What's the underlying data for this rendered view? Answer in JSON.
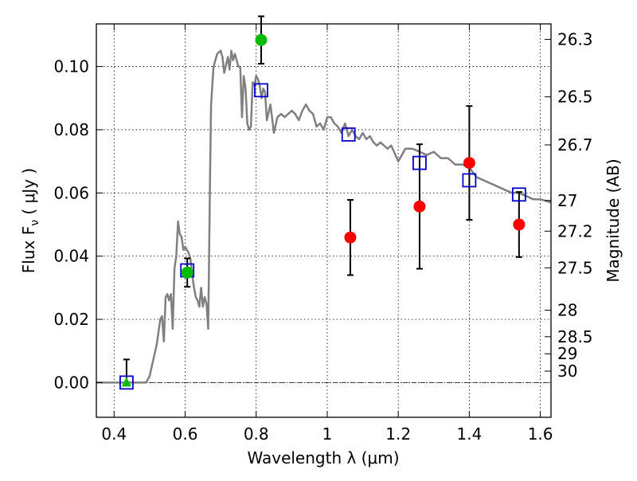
{
  "chart_data": {
    "type": "scatter",
    "xlabel": "Wavelength  λ (μm)",
    "ylabel": "Flux  F",
    "ylabel_sub": "ν",
    "ylabel_unit": "  ( μJy )",
    "y2label": "Magnitude (AB)",
    "xlim": [
      0.35,
      1.63
    ],
    "ylim": [
      -0.011,
      0.1135
    ],
    "grid": true,
    "x_ticks": [
      0.4,
      0.6,
      0.8,
      1.0,
      1.2,
      1.4,
      1.6
    ],
    "x_tick_labels": [
      "0.4",
      "0.6",
      "0.8",
      "1",
      "1.2",
      "1.4",
      "1.6"
    ],
    "y_ticks": [
      0.0,
      0.02,
      0.04,
      0.06,
      0.08,
      0.1
    ],
    "y_tick_labels": [
      "0.00",
      "0.02",
      "0.04",
      "0.06",
      "0.08",
      "0.10"
    ],
    "mag_ticks": [
      {
        "flux": 0.1086,
        "label": "26.3"
      },
      {
        "flux": 0.0904,
        "label": "26.5"
      },
      {
        "flux": 0.0752,
        "label": "26.7"
      },
      {
        "flux": 0.0576,
        "label": "27"
      },
      {
        "flux": 0.0479,
        "label": "27.2"
      },
      {
        "flux": 0.0363,
        "label": "27.5"
      },
      {
        "flux": 0.0229,
        "label": "28"
      },
      {
        "flux": 0.0145,
        "label": "28.5"
      },
      {
        "flux": 0.0091,
        "label": "29"
      },
      {
        "flux": 0.0036,
        "label": "30"
      }
    ],
    "series": [
      {
        "kind": "model-spectrum",
        "color": "#808080",
        "x": [
          0.35,
          0.45,
          0.49,
          0.5,
          0.52,
          0.53,
          0.535,
          0.54,
          0.545,
          0.55,
          0.555,
          0.56,
          0.565,
          0.57,
          0.575,
          0.58,
          0.585,
          0.59,
          0.595,
          0.6,
          0.605,
          0.61,
          0.615,
          0.62,
          0.625,
          0.63,
          0.635,
          0.64,
          0.645,
          0.65,
          0.655,
          0.66,
          0.665,
          0.67,
          0.673,
          0.68,
          0.69,
          0.7,
          0.705,
          0.71,
          0.72,
          0.725,
          0.73,
          0.735,
          0.74,
          0.745,
          0.75,
          0.755,
          0.76,
          0.765,
          0.77,
          0.775,
          0.78,
          0.785,
          0.79,
          0.795,
          0.8,
          0.805,
          0.81,
          0.815,
          0.82,
          0.825,
          0.83,
          0.84,
          0.85,
          0.86,
          0.87,
          0.88,
          0.9,
          0.91,
          0.92,
          0.93,
          0.94,
          0.95,
          0.96,
          0.97,
          0.98,
          0.99,
          1.0,
          1.01,
          1.02,
          1.03,
          1.04,
          1.05,
          1.06,
          1.07,
          1.08,
          1.09,
          1.1,
          1.11,
          1.12,
          1.13,
          1.14,
          1.15,
          1.16,
          1.17,
          1.18,
          1.2,
          1.22,
          1.24,
          1.26,
          1.28,
          1.3,
          1.32,
          1.34,
          1.36,
          1.38,
          1.4,
          1.42,
          1.44,
          1.46,
          1.48,
          1.5,
          1.52,
          1.54,
          1.56,
          1.58,
          1.6,
          1.63
        ],
        "y": [
          0,
          0,
          0,
          0.002,
          0.012,
          0.02,
          0.021,
          0.013,
          0.027,
          0.028,
          0.026,
          0.028,
          0.017,
          0.036,
          0.04,
          0.051,
          0.047,
          0.046,
          0.042,
          0.043,
          0.042,
          0.041,
          0.039,
          0.034,
          0.03,
          0.027,
          0.026,
          0.024,
          0.03,
          0.024,
          0.027,
          0.025,
          0.017,
          0.065,
          0.088,
          0.1,
          0.104,
          0.105,
          0.103,
          0.098,
          0.103,
          0.099,
          0.105,
          0.102,
          0.104,
          0.102,
          0.1,
          0.1,
          0.084,
          0.097,
          0.093,
          0.082,
          0.08,
          0.081,
          0.095,
          0.094,
          0.097,
          0.096,
          0.094,
          0.09,
          0.093,
          0.092,
          0.083,
          0.088,
          0.079,
          0.084,
          0.085,
          0.084,
          0.086,
          0.085,
          0.083,
          0.086,
          0.088,
          0.086,
          0.085,
          0.081,
          0.082,
          0.08,
          0.084,
          0.084,
          0.082,
          0.081,
          0.079,
          0.082,
          0.078,
          0.08,
          0.078,
          0.077,
          0.079,
          0.077,
          0.078,
          0.076,
          0.075,
          0.076,
          0.075,
          0.074,
          0.075,
          0.07,
          0.074,
          0.074,
          0.073,
          0.072,
          0.073,
          0.071,
          0.071,
          0.069,
          0.069,
          0.068,
          0.065,
          0.064,
          0.063,
          0.062,
          0.061,
          0.06,
          0.06,
          0.059,
          0.058,
          0.058,
          0.057
        ]
      },
      {
        "kind": "model-photometry",
        "marker": "open-square",
        "color": "#0000cc",
        "x": [
          0.435,
          0.606,
          0.814,
          1.06,
          1.26,
          1.4,
          1.54
        ],
        "y": [
          0.0,
          0.0355,
          0.0925,
          0.0785,
          0.0695,
          0.064,
          0.0595
        ]
      },
      {
        "kind": "observed-green",
        "marker": "filled-circle",
        "color": "#00bb00",
        "x": [
          0.606,
          0.814
        ],
        "y": [
          0.0348,
          0.1084
        ],
        "yerr_low": [
          0.0045,
          0.0075
        ],
        "yerr_high": [
          0.0045,
          0.0075
        ]
      },
      {
        "kind": "observed-upper-limit",
        "marker": "filled-triangle",
        "color": "#00bb00",
        "x": [
          0.435
        ],
        "y": [
          0.0
        ],
        "yerr_low": [
          0.0
        ],
        "yerr_high": [
          0.0073
        ]
      },
      {
        "kind": "observed-red",
        "marker": "filled-circle",
        "color": "#ff0000",
        "x": [
          1.065,
          1.26,
          1.4,
          1.54
        ],
        "y": [
          0.0459,
          0.0557,
          0.0695,
          0.05
        ],
        "yerr_low": [
          0.0119,
          0.0197,
          0.018,
          0.0103
        ],
        "yerr_high": [
          0.0119,
          0.0197,
          0.018,
          0.0103
        ]
      }
    ]
  }
}
